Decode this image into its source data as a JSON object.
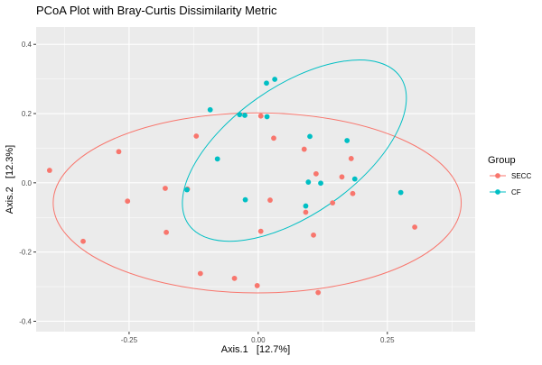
{
  "chart_data": {
    "type": "scatter",
    "title": "PCoA Plot with Bray-Curtis Dissimilarity Metric",
    "xlabel": "Axis.1   [12.7%]",
    "ylabel": "Axis.2   [12.3%]",
    "xlim": [
      -0.43,
      0.42
    ],
    "ylim": [
      -0.43,
      0.45
    ],
    "x_ticks": [
      -0.25,
      0,
      0.25
    ],
    "x_tick_labels": [
      "-0.25",
      "0.00",
      "0.25"
    ],
    "y_ticks": [
      -0.4,
      -0.2,
      0,
      0.2,
      0.4
    ],
    "y_tick_labels": [
      "-0.4",
      "-0.2",
      "0.0",
      "0.2",
      "0.4"
    ],
    "grid": true,
    "background_color": "#EBEBEB",
    "legend": {
      "title": "Group",
      "position": "right"
    },
    "series": [
      {
        "name": "SECC",
        "color": "#F8766D",
        "ellipse": {
          "cx": -0.002,
          "cy": -0.058,
          "rx": 0.395,
          "ry": 0.26,
          "angle": 0
        },
        "points": [
          [
            -0.404,
            0.036
          ],
          [
            -0.27,
            0.09
          ],
          [
            -0.253,
            -0.053
          ],
          [
            -0.339,
            -0.169
          ],
          [
            -0.18,
            -0.016
          ],
          [
            -0.178,
            -0.143
          ],
          [
            -0.137,
            -0.018
          ],
          [
            -0.12,
            0.135
          ],
          [
            -0.112,
            -0.262
          ],
          [
            -0.046,
            -0.276
          ],
          [
            -0.002,
            -0.297
          ],
          [
            0.005,
            -0.14
          ],
          [
            0.005,
            0.193
          ],
          [
            0.023,
            -0.05
          ],
          [
            0.03,
            0.129
          ],
          [
            0.089,
            0.097
          ],
          [
            0.092,
            -0.085
          ],
          [
            0.107,
            -0.151
          ],
          [
            0.112,
            0.026
          ],
          [
            0.116,
            -0.317
          ],
          [
            0.144,
            -0.058
          ],
          [
            0.162,
            0.017
          ],
          [
            0.18,
            0.07
          ],
          [
            0.183,
            -0.031
          ],
          [
            0.303,
            -0.128
          ]
        ]
      },
      {
        "name": "CF",
        "color": "#00BFC4",
        "ellipse": {
          "cx": 0.07,
          "cy": 0.093,
          "rx": 0.25,
          "ry": 0.185,
          "angle": -35
        },
        "points": [
          [
            -0.138,
            -0.02
          ],
          [
            -0.093,
            0.211
          ],
          [
            -0.079,
            0.069
          ],
          [
            -0.036,
            0.197
          ],
          [
            -0.026,
            0.195
          ],
          [
            -0.025,
            -0.049
          ],
          [
            0.016,
            0.288
          ],
          [
            0.017,
            0.191
          ],
          [
            0.032,
            0.299
          ],
          [
            0.092,
            -0.067
          ],
          [
            0.097,
            0.002
          ],
          [
            0.1,
            0.134
          ],
          [
            0.121,
            -0.001
          ],
          [
            0.172,
            0.122
          ],
          [
            0.187,
            0.011
          ],
          [
            0.276,
            -0.028
          ]
        ]
      }
    ]
  }
}
